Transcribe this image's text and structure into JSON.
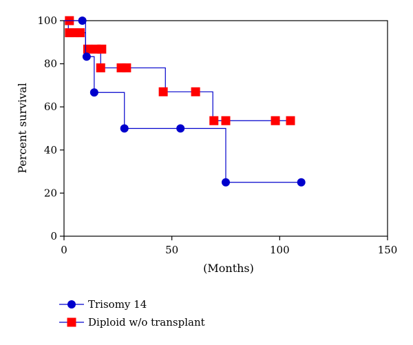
{
  "chart_data": {
    "type": "line",
    "subtype": "kaplan-meier step",
    "xlabel": "(Months)",
    "ylabel": "Percent survival",
    "xlim": [
      0,
      150
    ],
    "ylim": [
      0,
      100
    ],
    "xticks": [
      0,
      50,
      100,
      150
    ],
    "yticks": [
      0,
      20,
      40,
      60,
      80,
      100
    ],
    "grid": false,
    "legend_position": "bottom-left",
    "series": [
      {
        "name": "Trisomy 14",
        "color": "#0000cc",
        "marker": "circle",
        "steps": [
          [
            0,
            100
          ],
          [
            10,
            83.3
          ],
          [
            14,
            66.7
          ],
          [
            28,
            50
          ],
          [
            75,
            25
          ],
          [
            110,
            25
          ]
        ],
        "markers": [
          [
            8.5,
            100
          ],
          [
            10.5,
            83.3
          ],
          [
            14,
            66.7
          ],
          [
            28,
            50
          ],
          [
            54,
            50
          ],
          [
            75,
            25
          ],
          [
            110,
            25
          ]
        ]
      },
      {
        "name": "Diploid w/o transplant",
        "color": "#ff0000",
        "marker": "square",
        "steps": [
          [
            0,
            100
          ],
          [
            2,
            94.4
          ],
          [
            10,
            86.8
          ],
          [
            17,
            78.1
          ],
          [
            47,
            67
          ],
          [
            69,
            53.6
          ],
          [
            105,
            53.6
          ]
        ],
        "markers": [
          [
            2.5,
            100
          ],
          [
            2.5,
            94.4
          ],
          [
            5,
            94.4
          ],
          [
            7.5,
            94.4
          ],
          [
            11,
            86.8
          ],
          [
            15,
            86.8
          ],
          [
            17.5,
            86.8
          ],
          [
            17,
            78.1
          ],
          [
            26.5,
            78.1
          ],
          [
            29,
            78.1
          ],
          [
            46,
            67
          ],
          [
            61,
            67
          ],
          [
            69.5,
            53.6
          ],
          [
            75,
            53.6
          ],
          [
            98,
            53.6
          ],
          [
            105,
            53.6
          ]
        ]
      }
    ]
  }
}
